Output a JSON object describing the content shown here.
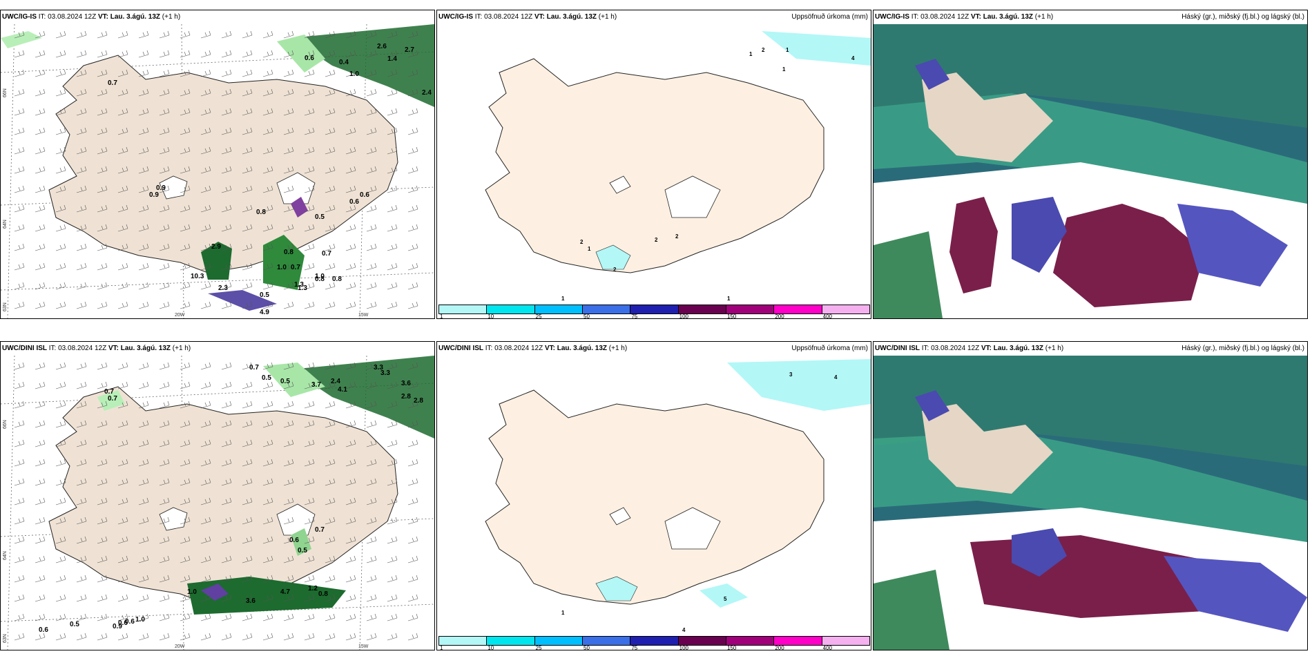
{
  "rows": [
    {
      "model": "UWC/IG-IS",
      "run_prefix": "IT: 03.08.2024 12Z",
      "valid_label": "VT:",
      "valid_time": "Lau. 3.ágú. 13Z",
      "lead": "(+1 h)",
      "precip_title": "Uppsöfnuð úrkoma (mm)",
      "cloud_title": "Háský (gr.), miðský (fj.bl.) og lágský (bl.)",
      "wind_values": [
        "0.7",
        "0.6",
        "0.9",
        "0.6",
        "0.8",
        "0.4",
        "1.0",
        "2.6",
        "2.7",
        "1.4",
        "2.4",
        "0.6",
        "0.5",
        "0.9",
        "0.7",
        "0.8",
        "0.7",
        "1.0",
        "1.0",
        "0.8",
        "0.8",
        "1.3",
        "1.3",
        "2.9",
        "2.3",
        "0.5",
        "4.9",
        "10.3"
      ],
      "precip_values": [
        "1",
        "2",
        "1",
        "4",
        "1",
        "1",
        "2",
        "2",
        "2",
        "2",
        "1",
        "1"
      ]
    },
    {
      "model": "UWC/DINI ISL",
      "run_prefix": "IT: 03.08.2024 12Z",
      "valid_label": "VT:",
      "valid_time": "Lau. 3.ágú. 13Z",
      "lead": "(+1 h)",
      "precip_title": "Uppsöfnuð úrkoma (mm)",
      "cloud_title": "Háský (gr.), miðský (fj.bl.) og lágský (bl.)",
      "wind_values": [
        "0.7",
        "0.5",
        "0.5",
        "3.3",
        "3.3",
        "0.7",
        "0.7",
        "3.7",
        "2.4",
        "4.1",
        "3.6",
        "2.8",
        "2.8",
        "0.7",
        "0.6",
        "0.5",
        "1.0",
        "4.7",
        "1.2",
        "0.8",
        "3.6",
        "0.6",
        "0.5",
        "0.9",
        "0.6",
        "1.0",
        "0.6"
      ],
      "precip_values": [
        "3",
        "4",
        "1",
        "4",
        "5"
      ]
    }
  ],
  "axis_labels": {
    "lat_66": "66N",
    "lat_64": "64N",
    "lat_63": "63N",
    "lon_20": "20W",
    "lon_15": "15W"
  },
  "colorbar": {
    "ticks": [
      "1",
      "10",
      "25",
      "50",
      "75",
      "100",
      "150",
      "200",
      "400"
    ],
    "colors": [
      "#b3f7f7",
      "#00e5ee",
      "#00bfff",
      "#3a6fe8",
      "#2020b0",
      "#6a0050",
      "#a0007a",
      "#ff00c8",
      "#f5b0f0"
    ]
  }
}
